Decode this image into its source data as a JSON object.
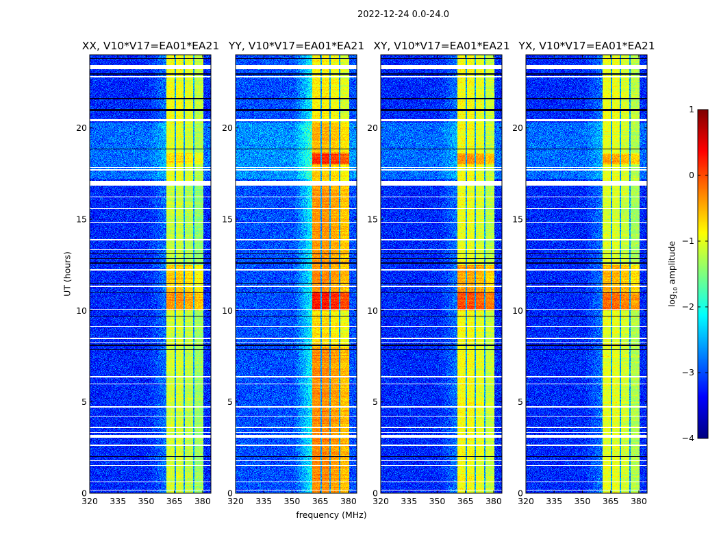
{
  "chart_data": {
    "type": "heatmap",
    "suptitle": "2022-12-24 0.0-24.0",
    "xlabel": "frequency (MHz)",
    "ylabel": "UT (hours)",
    "xlim": [
      320,
      384.4
    ],
    "ylim": [
      0,
      24
    ],
    "xticks": [
      320,
      335,
      350,
      365,
      380
    ],
    "yticks": [
      0,
      5,
      10,
      15,
      20
    ],
    "colorbar": {
      "label": "log10 amplitude",
      "label_main": "log",
      "label_sub": "10",
      "label_rest": " amplitude",
      "range": [
        -4,
        1
      ],
      "ticks": [
        1,
        0,
        -1,
        -2,
        -3,
        -4
      ],
      "tick_labels": [
        "1",
        "0",
        "−1",
        "−2",
        "−3",
        "−4"
      ],
      "colormap": "jet"
    },
    "band": {
      "freq_range": [
        360.7,
        380.4
      ],
      "channel_gaps": [
        365.5,
        370.2,
        375.3
      ]
    },
    "flagged_hours": [
      [
        23.2,
        23.45
      ],
      [
        22.75,
        22.82
      ],
      [
        20.35,
        20.48
      ],
      [
        17.65,
        17.72
      ],
      [
        17.8,
        17.86
      ],
      [
        16.85,
        17.1
      ],
      [
        16.2,
        16.25
      ],
      [
        15.55,
        15.6
      ],
      [
        14.8,
        14.85
      ],
      [
        13.85,
        13.9
      ],
      [
        13.3,
        13.35
      ],
      [
        12.2,
        12.25
      ],
      [
        11.3,
        11.35
      ],
      [
        10.05,
        10.1
      ],
      [
        9.1,
        9.15
      ],
      [
        8.45,
        8.5
      ],
      [
        8.2,
        8.25
      ],
      [
        6.35,
        6.4
      ],
      [
        5.95,
        6.0
      ],
      [
        4.7,
        4.75
      ],
      [
        4.2,
        4.25
      ],
      [
        3.55,
        3.62
      ],
      [
        3.3,
        3.35
      ],
      [
        3.05,
        3.2
      ],
      [
        2.6,
        2.65
      ],
      [
        1.75,
        1.8
      ],
      [
        1.5,
        1.55
      ],
      [
        0.6,
        0.65
      ],
      [
        0.15,
        0.2
      ]
    ],
    "dark_hours": [
      23.8,
      22.95,
      21.6,
      21.0,
      20.95,
      18.85,
      16.95,
      13.1,
      12.85,
      12.6,
      11.5,
      11.0,
      9.7,
      8.1,
      7.85,
      2.0
    ],
    "panels": [
      {
        "title": "XX, V10*V17=EA01*EA21",
        "background": -3.2,
        "band_segments": [
          {
            "t": [
              0,
              8
            ],
            "v": -1.1
          },
          {
            "t": [
              8,
              10
            ],
            "v": -1.1
          },
          {
            "t": [
              10,
              11
            ],
            "v": -0.35
          },
          {
            "t": [
              11,
              12.5
            ],
            "v": -0.6
          },
          {
            "t": [
              12.5,
              17
            ],
            "v": -1.15
          },
          {
            "t": [
              17,
              18
            ],
            "v": -1.0
          },
          {
            "t": [
              18,
              18.6
            ],
            "v": -0.7
          },
          {
            "t": [
              18.6,
              20.3
            ],
            "v": -1.0
          },
          {
            "t": [
              20.5,
              24
            ],
            "v": -0.9
          }
        ]
      },
      {
        "title": "YY, V10*V17=EA01*EA21",
        "background": -3.0,
        "band_segments": [
          {
            "t": [
              0,
              8
            ],
            "v": -0.3
          },
          {
            "t": [
              8,
              10
            ],
            "v": -0.7
          },
          {
            "t": [
              10,
              11
            ],
            "v": 0.3
          },
          {
            "t": [
              11,
              12.5
            ],
            "v": -0.3
          },
          {
            "t": [
              12.5,
              17
            ],
            "v": -0.35
          },
          {
            "t": [
              17,
              18
            ],
            "v": -0.6
          },
          {
            "t": [
              18,
              18.6
            ],
            "v": 0.2
          },
          {
            "t": [
              18.6,
              20.3
            ],
            "v": -0.5
          },
          {
            "t": [
              20.5,
              24
            ],
            "v": -0.8
          }
        ]
      },
      {
        "title": "XY, V10*V17=EA01*EA21",
        "background": -3.2,
        "band_segments": [
          {
            "t": [
              0,
              8
            ],
            "v": -0.9
          },
          {
            "t": [
              8,
              10
            ],
            "v": -0.9
          },
          {
            "t": [
              10,
              11
            ],
            "v": 0.0
          },
          {
            "t": [
              11,
              12.5
            ],
            "v": -0.4
          },
          {
            "t": [
              12.5,
              17
            ],
            "v": -0.95
          },
          {
            "t": [
              17,
              18
            ],
            "v": -0.9
          },
          {
            "t": [
              18,
              18.6
            ],
            "v": -0.35
          },
          {
            "t": [
              18.6,
              20.3
            ],
            "v": -0.9
          },
          {
            "t": [
              20.5,
              24
            ],
            "v": -0.9
          }
        ]
      },
      {
        "title": "YX, V10*V17=EA01*EA21",
        "background": -3.2,
        "band_segments": [
          {
            "t": [
              0,
              8
            ],
            "v": -1.0
          },
          {
            "t": [
              8,
              10
            ],
            "v": -1.0
          },
          {
            "t": [
              10,
              11
            ],
            "v": -0.15
          },
          {
            "t": [
              11,
              12.5
            ],
            "v": -0.5
          },
          {
            "t": [
              12.5,
              17
            ],
            "v": -1.05
          },
          {
            "t": [
              17,
              18
            ],
            "v": -1.0
          },
          {
            "t": [
              18,
              18.6
            ],
            "v": -0.45
          },
          {
            "t": [
              18.6,
              20.3
            ],
            "v": -1.0
          },
          {
            "t": [
              20.5,
              24
            ],
            "v": -0.95
          }
        ]
      }
    ]
  }
}
